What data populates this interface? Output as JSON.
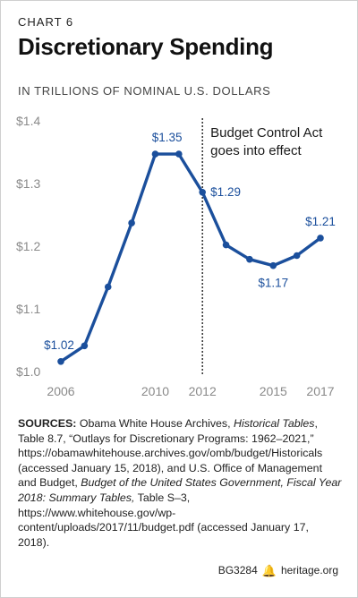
{
  "eyebrow": "CHART 6",
  "title": "Discretionary Spending",
  "subtitle": "IN TRILLIONS OF NOMINAL U.S. DOLLARS",
  "colors": {
    "line": "#1b4f9c",
    "axis_text": "#8a8a8a",
    "annotation_line": "#222222"
  },
  "chart_data": {
    "type": "line",
    "title": "Discretionary Spending",
    "subtitle": "IN TRILLIONS OF NOMINAL U.S. DOLLARS",
    "ylim": [
      1.0,
      1.4
    ],
    "xlim": [
      2006,
      2017
    ],
    "y_ticks": [
      1.0,
      1.1,
      1.2,
      1.3,
      1.4
    ],
    "y_tick_labels": [
      "$1.0",
      "$1.1",
      "$1.2",
      "$1.3",
      "$1.4"
    ],
    "x_ticks": [
      2006,
      2010,
      2012,
      2015,
      2017
    ],
    "x_tick_labels": [
      "2006",
      "2010",
      "2012",
      "2015",
      "2017"
    ],
    "grid": false,
    "series": [
      {
        "x": [
          2006,
          2007,
          2008,
          2009,
          2010,
          2011,
          2012,
          2013,
          2014,
          2015,
          2016,
          2017
        ],
        "values": [
          1.016,
          1.041,
          1.135,
          1.237,
          1.347,
          1.347,
          1.286,
          1.202,
          1.179,
          1.169,
          1.185,
          1.213
        ]
      }
    ],
    "data_labels": [
      {
        "x": 2006,
        "text": "$1.02"
      },
      {
        "x": 2010.5,
        "text": "$1.35"
      },
      {
        "x": 2012,
        "text": "$1.29"
      },
      {
        "x": 2015,
        "text": "$1.17"
      },
      {
        "x": 2017,
        "text": "$1.21"
      }
    ],
    "annotation": {
      "x": 2012,
      "text_lines": [
        "Budget Control Act",
        "goes into effect"
      ]
    }
  },
  "sources": {
    "label": "SOURCES:",
    "t1": " Obama White House Archives, ",
    "i1": "Historical Tables",
    "t2": ", Table 8.7, “Outlays for Discretionary Programs: 1962–2021,” https://obamawhitehouse.archives.gov/omb/budget/Historicals (accessed January 15, 2018), and U.S. Office of Management and Budget, ",
    "i2": "Budget of the United States Government, Fiscal Year 2018: Summary Tables,",
    "t3": " Table S–3, https://www.whitehouse.gov/wp-content/uploads/2017/11/budget.pdf (accessed January 17, 2018)."
  },
  "footer": {
    "id": "BG3284",
    "site": "heritage.org"
  }
}
